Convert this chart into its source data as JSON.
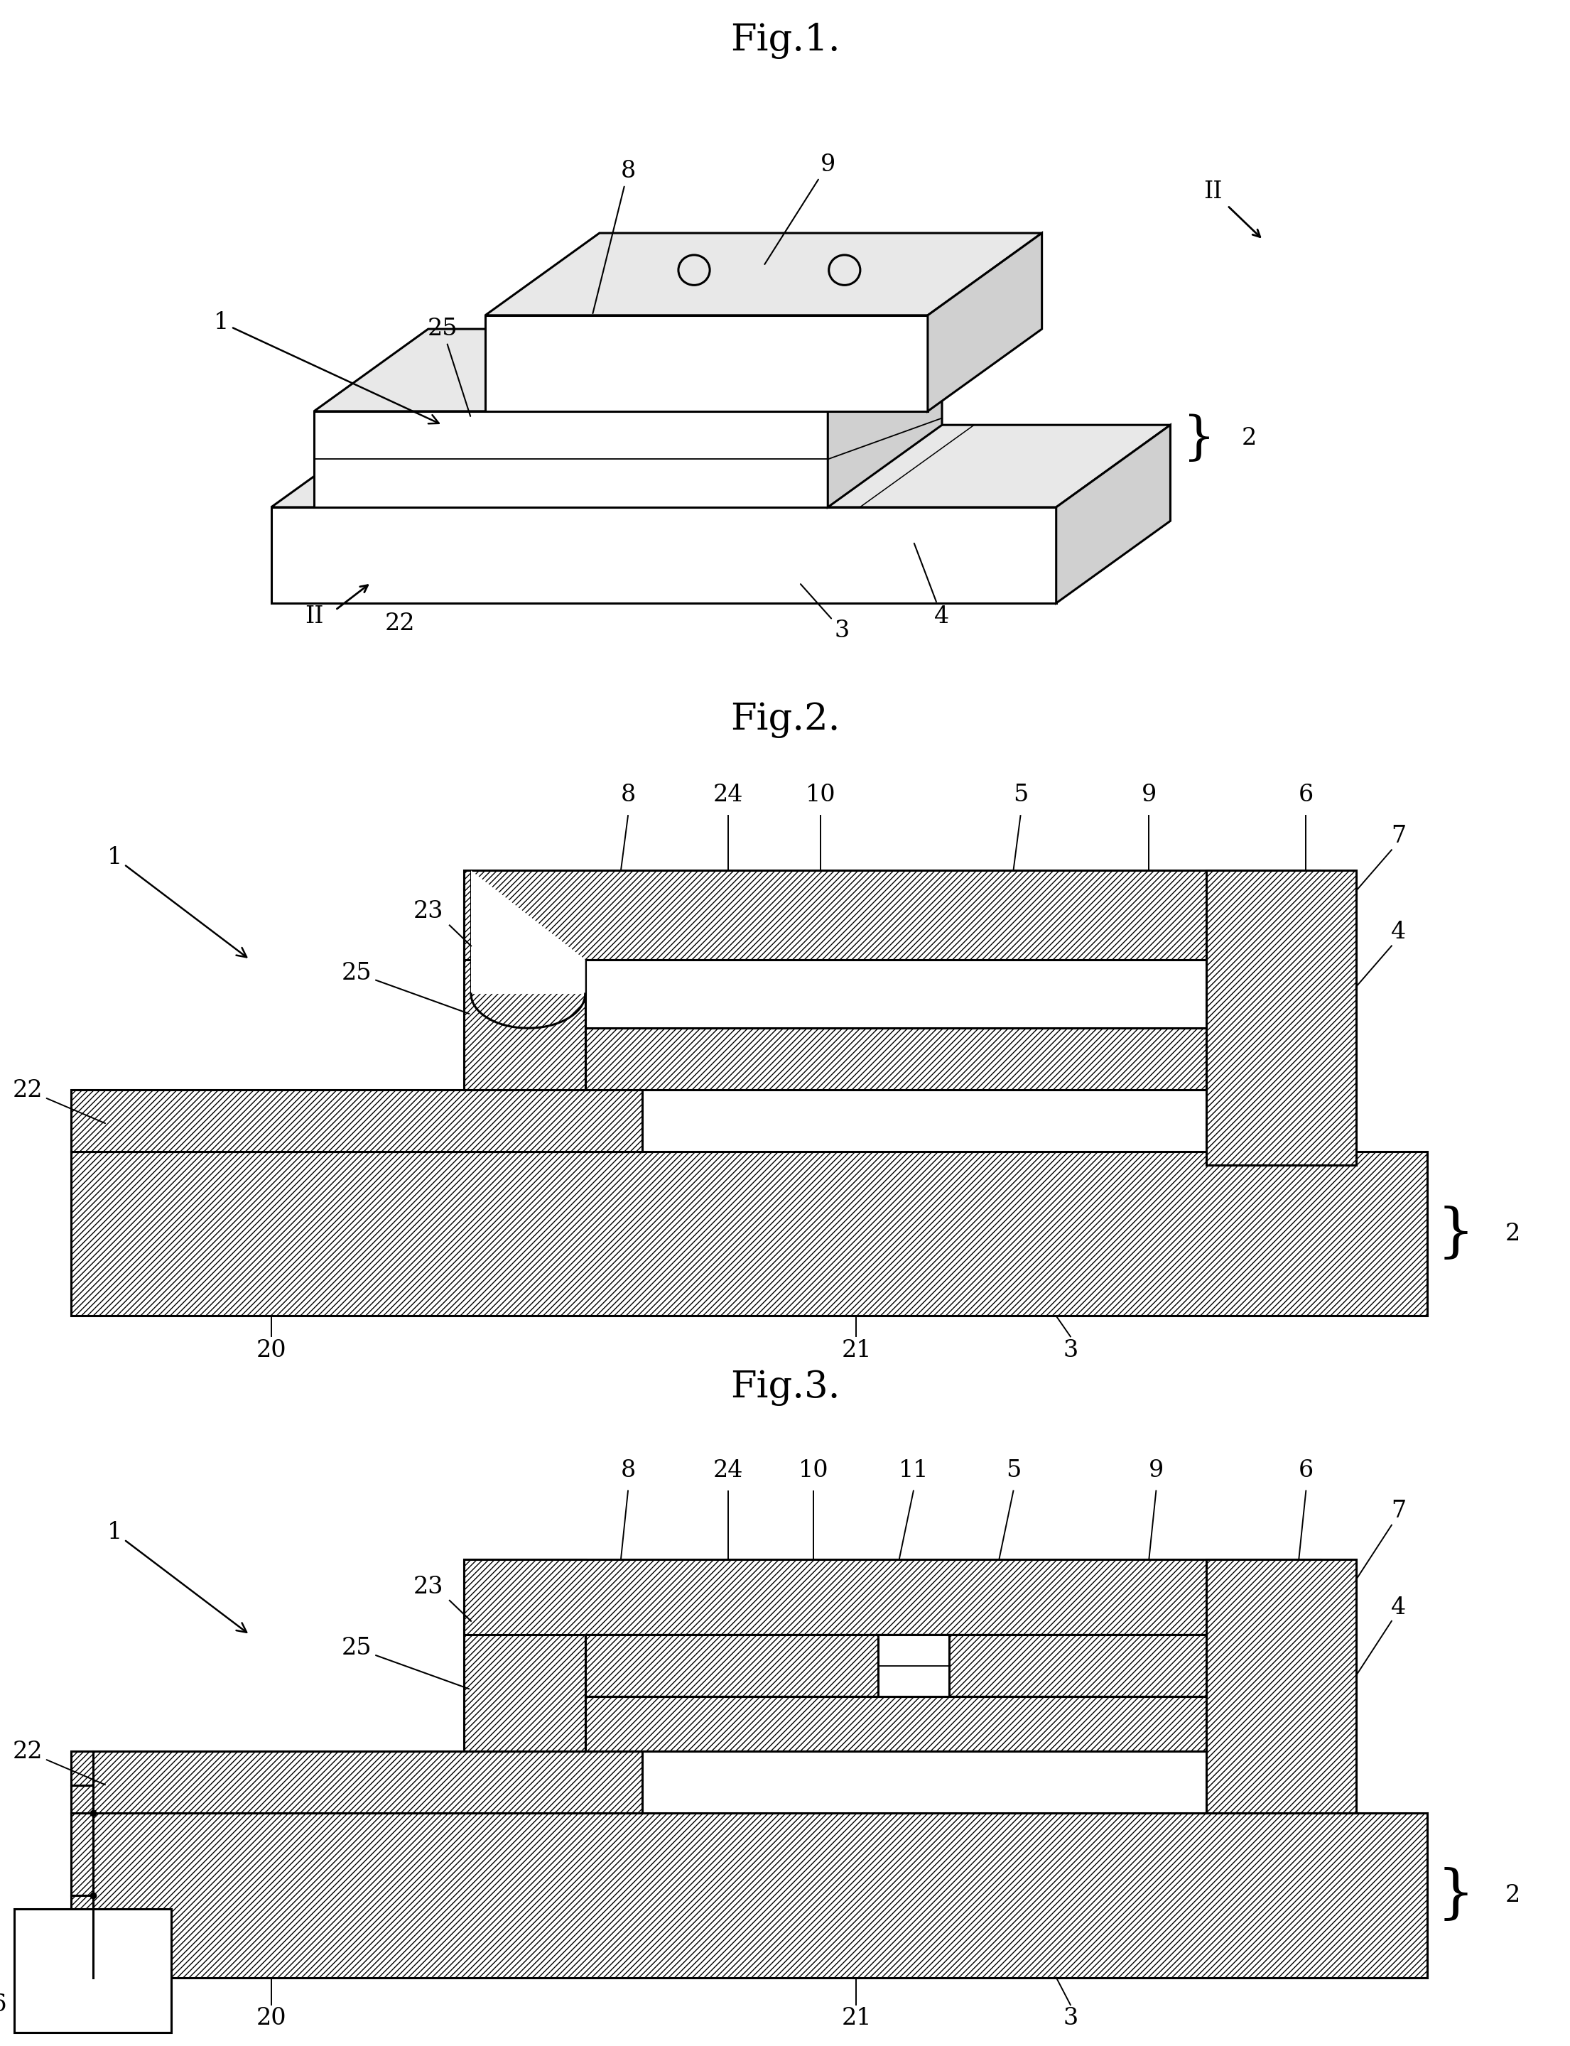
{
  "bg_color": "#ffffff",
  "fig1_title": "Fig.1.",
  "fig2_title": "Fig.2.",
  "fig3_title": "Fig.3.",
  "title_fontsize": 38,
  "label_fontsize": 24,
  "lw": 2.2
}
